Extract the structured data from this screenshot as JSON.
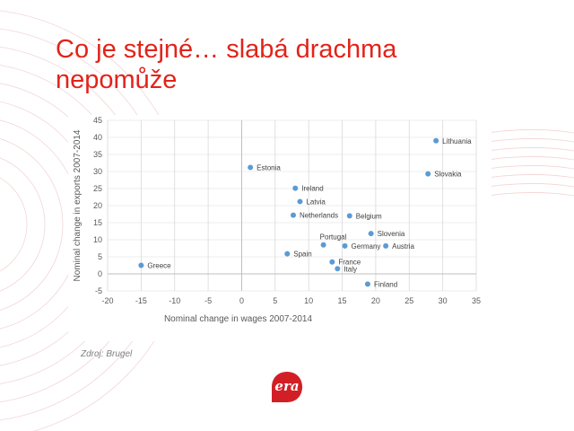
{
  "slide": {
    "title_line1": "Co je stejné… slabá drachma",
    "title_line2": "nepomůže",
    "source": "Zdroj: Brugel",
    "logo_text": "era"
  },
  "colors": {
    "title": "#e2231a",
    "point": "#5b9bd5",
    "grid": "#d9d9d9",
    "axis_text": "#595959",
    "logo": "#d21f26"
  },
  "chart_data": {
    "type": "scatter",
    "title": "",
    "xlabel": "Nominal change in wages 2007-2014",
    "ylabel": "Nominal change in exports 2007-2014",
    "xlim": [
      -20,
      35
    ],
    "ylim": [
      -5,
      45
    ],
    "xticks": [
      -20,
      -15,
      -10,
      -5,
      0,
      5,
      10,
      15,
      20,
      25,
      30,
      35
    ],
    "yticks": [
      -5,
      0,
      5,
      10,
      15,
      20,
      25,
      30,
      35,
      40,
      45
    ],
    "grid": "vertical",
    "points": [
      {
        "label": "Lithuania",
        "x": 29.0,
        "y": 39.0,
        "label_side": "right"
      },
      {
        "label": "Slovakia",
        "x": 27.8,
        "y": 29.3,
        "label_side": "right"
      },
      {
        "label": "Estonia",
        "x": 1.3,
        "y": 31.2,
        "label_side": "right"
      },
      {
        "label": "Ireland",
        "x": 8.0,
        "y": 25.1,
        "label_side": "right"
      },
      {
        "label": "Latvia",
        "x": 8.7,
        "y": 21.2,
        "label_side": "right"
      },
      {
        "label": "Netherlands",
        "x": 7.7,
        "y": 17.2,
        "label_side": "right"
      },
      {
        "label": "Belgium",
        "x": 16.1,
        "y": 17.0,
        "label_side": "right"
      },
      {
        "label": "Slovenia",
        "x": 19.3,
        "y": 11.8,
        "label_side": "right"
      },
      {
        "label": "Portugal",
        "x": 12.2,
        "y": 8.5,
        "label_side": "above"
      },
      {
        "label": "Germany",
        "x": 15.4,
        "y": 8.2,
        "label_side": "right"
      },
      {
        "label": "Austria",
        "x": 21.5,
        "y": 8.2,
        "label_side": "right"
      },
      {
        "label": "Spain",
        "x": 6.8,
        "y": 5.9,
        "label_side": "right"
      },
      {
        "label": "France",
        "x": 13.5,
        "y": 3.5,
        "label_side": "right"
      },
      {
        "label": "Italy",
        "x": 14.3,
        "y": 1.5,
        "label_side": "right"
      },
      {
        "label": "Greece",
        "x": -15.0,
        "y": 2.5,
        "label_side": "right"
      },
      {
        "label": "Finland",
        "x": 18.8,
        "y": -3.0,
        "label_side": "right"
      }
    ]
  }
}
